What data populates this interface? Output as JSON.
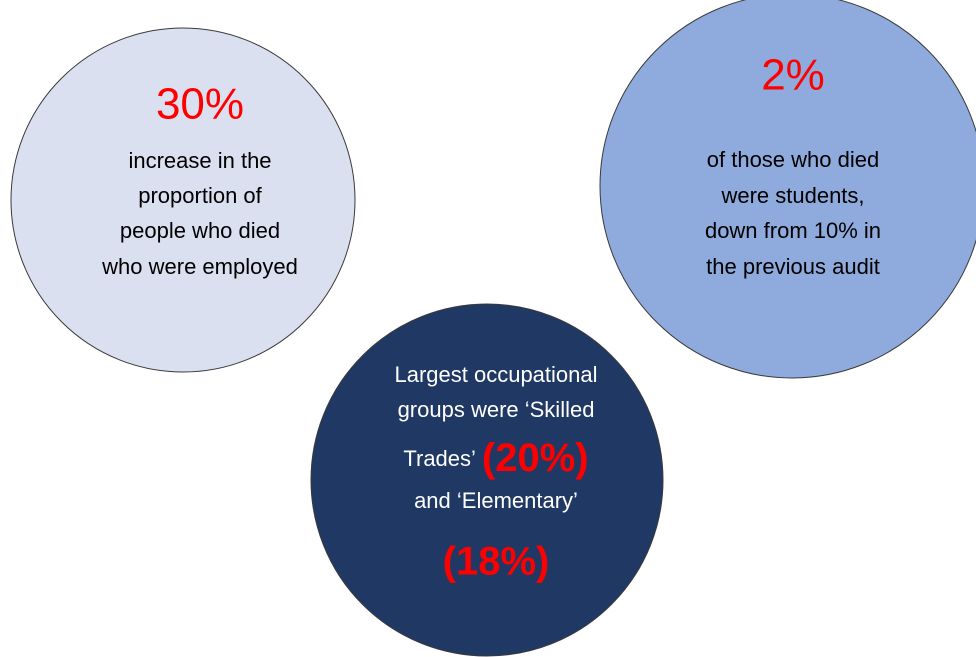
{
  "circles": [
    {
      "headline": "30%",
      "lines": [
        "increase in the",
        "proportion of",
        "people who died",
        "who were employed"
      ]
    },
    {
      "headline": "2%",
      "lines": [
        "of those who died",
        "were students,",
        "down from 10% in",
        "the previous audit"
      ]
    },
    {
      "lines": [
        "Largest occupational",
        "groups were ‘Skilled",
        "Trades’",
        "and ‘Elementary’"
      ],
      "highlights": [
        "(20%)",
        "(18%)"
      ]
    }
  ]
}
